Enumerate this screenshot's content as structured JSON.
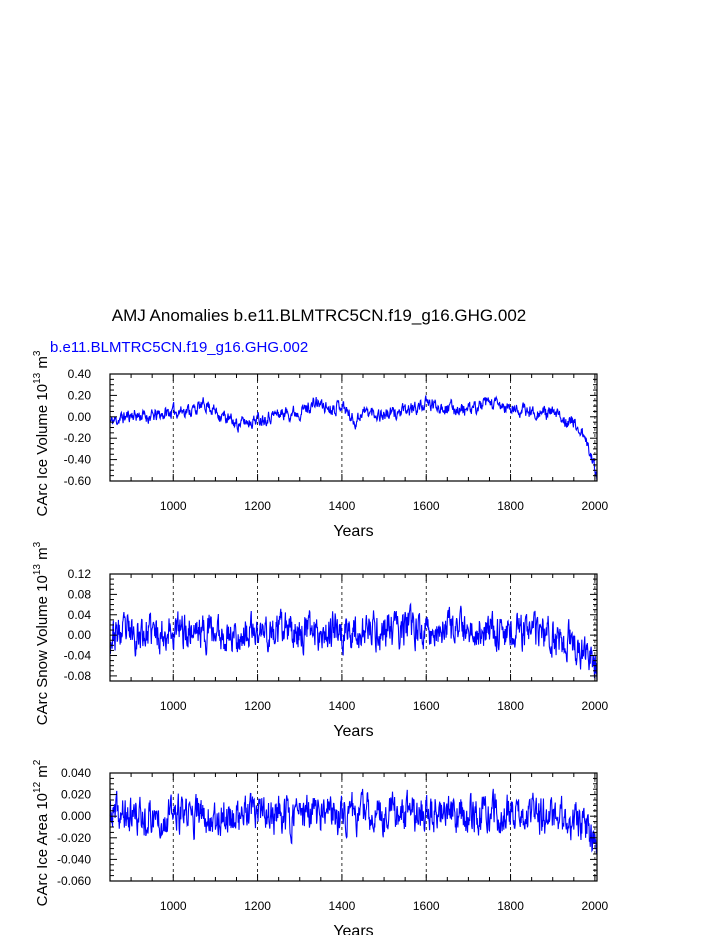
{
  "title": "AMJ Anomalies b.e11.BLMTRC5CN.f19_g16.GHG.002",
  "legend": {
    "label": "b.e11.BLMTRC5CN.f19_g16.GHG.002",
    "color": "#0000ff"
  },
  "colors": {
    "series": "#0000ff",
    "axis": "#000000",
    "refline": "#000000"
  },
  "chart_data": [
    {
      "type": "line",
      "name": "ice-volume",
      "title": "",
      "xlabel": "Years",
      "ylabel": "CArc Ice Volume 10",
      "ylabel_sup": "13",
      "ylabel_unit": " m",
      "ylabel_unit_sup": "3",
      "xlim": [
        850,
        2005
      ],
      "ylim": [
        -0.6,
        0.4
      ],
      "xticks": [
        1000,
        1200,
        1400,
        1600,
        1800,
        2000
      ],
      "xtick_labels": [
        "1000",
        "1200",
        "1400",
        "1600",
        "1800",
        "2000"
      ],
      "yticks": [
        -0.6,
        -0.4,
        -0.2,
        0.0,
        0.2,
        0.4
      ],
      "ytick_labels": [
        "-0.60",
        "-0.40",
        "-0.20",
        "0.00",
        "0.20",
        "0.40"
      ],
      "reference_lines_x": [
        1000,
        1200,
        1400,
        1600,
        1800,
        2000
      ],
      "trend_points": {
        "x": [
          850,
          900,
          950,
          1000,
          1050,
          1080,
          1100,
          1150,
          1200,
          1250,
          1300,
          1340,
          1370,
          1400,
          1430,
          1450,
          1500,
          1550,
          1600,
          1650,
          1700,
          1750,
          1800,
          1850,
          1900,
          1950,
          1970,
          1990,
          2005
        ],
        "y": [
          -0.05,
          0.02,
          0.0,
          0.05,
          0.07,
          0.12,
          0.05,
          -0.07,
          -0.02,
          0.03,
          0.05,
          0.13,
          0.08,
          0.12,
          -0.05,
          0.05,
          0.02,
          0.05,
          0.12,
          0.09,
          0.06,
          0.13,
          0.07,
          0.05,
          0.03,
          -0.06,
          -0.15,
          -0.35,
          -0.52
        ]
      },
      "noise_amplitude": 0.05,
      "seed": 11,
      "n_points": 1156
    },
    {
      "type": "line",
      "name": "snow-volume",
      "title": "",
      "xlabel": "Years",
      "ylabel": "CArc Snow Volume 10",
      "ylabel_sup": "13",
      "ylabel_unit": " m",
      "ylabel_unit_sup": "3",
      "xlim": [
        850,
        2005
      ],
      "ylim": [
        -0.09,
        0.12
      ],
      "xticks": [
        1000,
        1200,
        1400,
        1600,
        1800,
        2000
      ],
      "xtick_labels": [
        "1000",
        "1200",
        "1400",
        "1600",
        "1800",
        "2000"
      ],
      "yticks": [
        -0.08,
        -0.04,
        0.0,
        0.04,
        0.08,
        0.12
      ],
      "ytick_labels": [
        "-0.08",
        "-0.04",
        "0.00",
        "0.04",
        "0.08",
        "0.12"
      ],
      "reference_lines_x": [
        1000,
        1200,
        1400,
        1600,
        1800,
        2000
      ],
      "trend_points": {
        "x": [
          850,
          950,
          1050,
          1150,
          1250,
          1350,
          1450,
          1550,
          1650,
          1750,
          1850,
          1950,
          1980,
          2005
        ],
        "y": [
          0.0,
          0.005,
          0.01,
          0.0,
          0.005,
          0.01,
          0.005,
          0.012,
          0.008,
          0.01,
          0.005,
          -0.015,
          -0.04,
          -0.07
        ]
      },
      "noise_amplitude": 0.028,
      "seed": 23,
      "n_points": 1156
    },
    {
      "type": "line",
      "name": "ice-area",
      "title": "",
      "xlabel": "Years",
      "ylabel": "CArc Ice Area 10",
      "ylabel_sup": "12",
      "ylabel_unit": " m",
      "ylabel_unit_sup": "2",
      "xlim": [
        850,
        2005
      ],
      "ylim": [
        -0.06,
        0.04
      ],
      "xticks": [
        1000,
        1200,
        1400,
        1600,
        1800,
        2000
      ],
      "xtick_labels": [
        "1000",
        "1200",
        "1400",
        "1600",
        "1800",
        "2000"
      ],
      "yticks": [
        -0.06,
        -0.04,
        -0.02,
        0.0,
        0.02,
        0.04
      ],
      "ytick_labels": [
        "-0.060",
        "-0.040",
        "-0.020",
        "0.000",
        "0.020",
        "0.040"
      ],
      "reference_lines_x": [
        1000,
        1200,
        1400,
        1600,
        1800,
        2000
      ],
      "trend_points": {
        "x": [
          850,
          1000,
          1200,
          1400,
          1600,
          1800,
          1950,
          1990,
          2005
        ],
        "y": [
          0.0,
          0.0,
          0.0,
          0.002,
          0.003,
          0.002,
          -0.003,
          -0.015,
          -0.035
        ]
      },
      "noise_amplitude": 0.014,
      "seed": 37,
      "n_points": 1156
    }
  ]
}
